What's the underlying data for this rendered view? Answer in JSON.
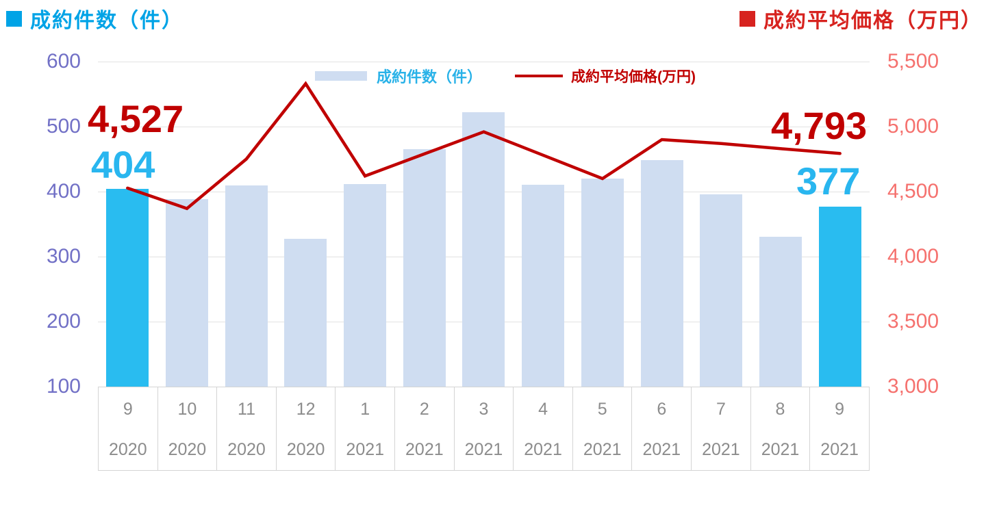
{
  "titles": {
    "left": "成約件数（件）",
    "right": "成約平均価格（万円）"
  },
  "legend": {
    "bar_label": "成約件数（件）",
    "line_label": "成約平均価格(万円)"
  },
  "callouts": {
    "first_price": "4,527",
    "first_count": "404",
    "last_price": "4,793",
    "last_count": "377"
  },
  "colors": {
    "title_cyan": "#00A3E6",
    "title_red": "#D7231F",
    "bar_fill": "#CFDDF1",
    "bar_highlight": "#29BCF0",
    "line_red": "#C00000",
    "callout_red": "#C00000",
    "callout_cyan": "#29B6EF",
    "left_axis_text": "#7170C6",
    "right_axis_text": "#F5716E",
    "x_axis_text": "#8C8C8C",
    "grid": "#E2E2E2",
    "table_border": "#D4D4D4",
    "legend_bar_text": "#29B2E8"
  },
  "chart_data": {
    "type": "combo_bar_line",
    "title": "",
    "categories_month": [
      "9",
      "10",
      "11",
      "12",
      "1",
      "2",
      "3",
      "4",
      "5",
      "6",
      "7",
      "8",
      "9"
    ],
    "categories_year": [
      "2020",
      "2020",
      "2020",
      "2020",
      "2021",
      "2021",
      "2021",
      "2021",
      "2021",
      "2021",
      "2021",
      "2021",
      "2021"
    ],
    "series": [
      {
        "name": "成約件数(件)",
        "type": "bar",
        "axis": "left",
        "values": [
          404,
          388,
          409,
          327,
          412,
          465,
          522,
          411,
          420,
          448,
          396,
          331,
          377
        ]
      },
      {
        "name": "成約平均価格(万円)",
        "type": "line",
        "axis": "right",
        "values": [
          4527,
          4370,
          4750,
          5330,
          4620,
          4790,
          4960,
          4780,
          4600,
          4900,
          4870,
          4830,
          4793
        ]
      }
    ],
    "highlighted_bar_indices": [
      0,
      12
    ],
    "left_axis": {
      "label": "成約件数（件）",
      "ticks": [
        "600",
        "500",
        "400",
        "300",
        "200",
        "100"
      ],
      "min": 100,
      "max": 600
    },
    "right_axis": {
      "label": "成約平均価格（万円）",
      "ticks": [
        "5,500",
        "5,000",
        "4,500",
        "4,000",
        "3,500",
        "3,000"
      ],
      "min": 3000,
      "max": 5500
    },
    "annotations": [
      "4,527",
      "404",
      "4,793",
      "377"
    ],
    "grid": true,
    "legend_position": "top-center"
  }
}
